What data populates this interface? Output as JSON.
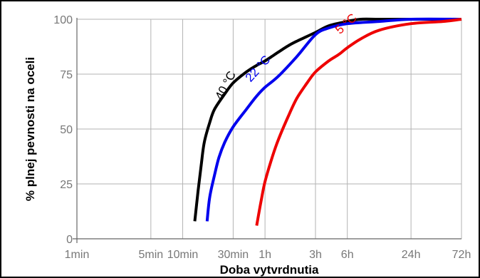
{
  "chart_data": {
    "type": "line",
    "title": "",
    "xlabel": "Doba vytvrdnutia",
    "ylabel": "% plnej pevnosti na oceli",
    "x_scale": "log",
    "x_unit": "minutes",
    "xlim": [
      1,
      4320
    ],
    "ylim": [
      0,
      100
    ],
    "grid": true,
    "legend": "none",
    "x_ticks": [
      {
        "value": 1,
        "label": "1min"
      },
      {
        "value": 5,
        "label": "5min"
      },
      {
        "value": 10,
        "label": "10min"
      },
      {
        "value": 30,
        "label": "30min"
      },
      {
        "value": 60,
        "label": "1h"
      },
      {
        "value": 180,
        "label": "3h"
      },
      {
        "value": 360,
        "label": "6h"
      },
      {
        "value": 1440,
        "label": "24h"
      },
      {
        "value": 4320,
        "label": "72h"
      }
    ],
    "y_ticks": [
      0,
      25,
      50,
      75,
      100
    ],
    "series": [
      {
        "name": "40 °C",
        "color": "#000000",
        "x": [
          13,
          14,
          15,
          16,
          18,
          20,
          25,
          30,
          40,
          50,
          60,
          80,
          100,
          120,
          180,
          240,
          360,
          480,
          720,
          1440,
          4320
        ],
        "y": [
          8,
          22,
          34,
          44,
          53,
          59,
          66,
          71,
          76,
          79,
          81,
          85,
          88,
          90,
          94,
          97,
          99,
          100,
          100,
          100,
          100
        ]
      },
      {
        "name": "22 °C",
        "color": "#0000ee",
        "x": [
          17,
          18,
          20,
          22,
          25,
          30,
          40,
          50,
          60,
          80,
          120,
          180,
          240,
          360,
          720,
          1440,
          4320
        ],
        "y": [
          8,
          19,
          29,
          37,
          44,
          51,
          59,
          65,
          69,
          74,
          83,
          93,
          96,
          98,
          99,
          100,
          100
        ]
      },
      {
        "name": "5 °C",
        "color": "#ee0000",
        "x": [
          50,
          55,
          60,
          70,
          80,
          100,
          120,
          150,
          180,
          240,
          300,
          360,
          480,
          720,
          1440,
          2880,
          4320
        ],
        "y": [
          6,
          17,
          26,
          37,
          45,
          56,
          64,
          71,
          76,
          81,
          84,
          87,
          91,
          95,
          98,
          99,
          100
        ]
      }
    ]
  }
}
